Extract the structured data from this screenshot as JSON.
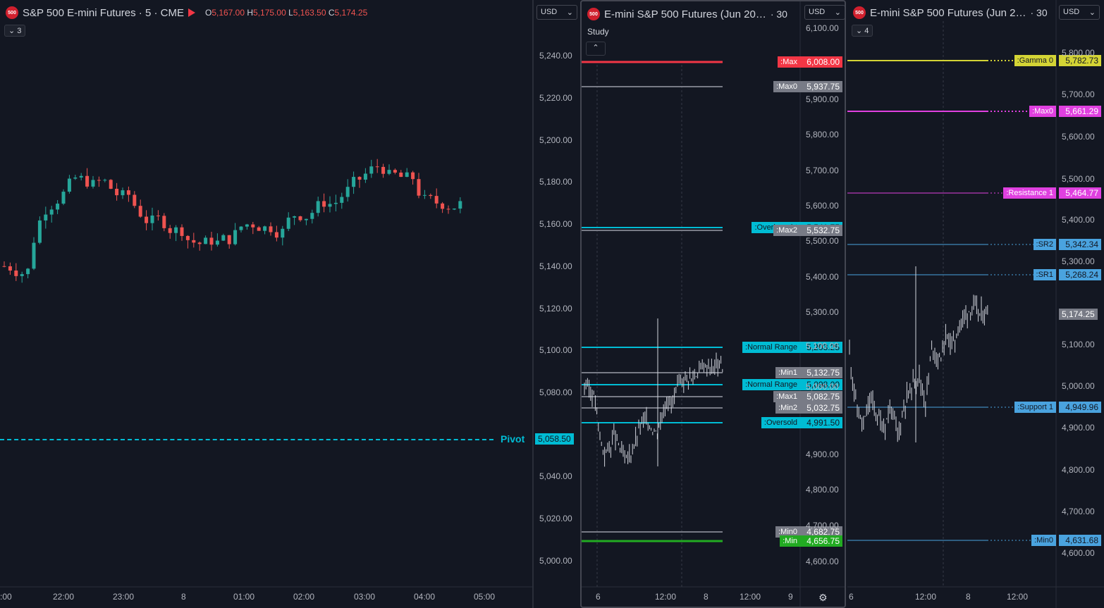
{
  "colors": {
    "bg": "#131722",
    "up": "#26a69a",
    "down": "#ef5350",
    "cyan": "#00bcd4",
    "gray": "#787b86",
    "red": "#f23645",
    "green": "#22ab22",
    "yellow": "#d4d435",
    "magenta": "#e040e0",
    "blue": "#4aa3df"
  },
  "pane1": {
    "symbol_icon": "500",
    "title": "S&P 500 E-mini Futures · 5 · CME",
    "open_label": "O",
    "open": "5,167.00",
    "high_label": "H",
    "high": "5,175.00",
    "low_label": "L",
    "low": "5,163.50",
    "close_label": "C",
    "close": "5,174.25",
    "collapse_count": "3",
    "currency": "USD",
    "pivot_label": "Pivot",
    "pivot_value": "5,058.50",
    "price_axis": [
      "5,240.00",
      "5,220.00",
      "5,200.00",
      "5,180.00",
      "5,160.00",
      "5,140.00",
      "5,120.00",
      "5,100.00",
      "5,080.00",
      "5,060.00",
      "5,040.00",
      "5,020.00",
      "5,000.00"
    ],
    "time_axis": [
      ":00",
      "22:00",
      "23:00",
      "8",
      "01:00",
      "02:00",
      "03:00",
      "04:00",
      "05:00"
    ]
  },
  "pane2": {
    "symbol_icon": "500",
    "title": "E-mini S&P 500 Futures (Jun 20…",
    "interval": "· 30",
    "study_label": "Study",
    "currency": "USD",
    "price_axis": [
      "6,100.00",
      "5,900.00",
      "5,800.00",
      "5,700.00",
      "5,600.00",
      "5,500.00",
      "5,400.00",
      "5,300.00",
      "5,100.00",
      "5,000.00",
      "4,900.00",
      "4,800.00",
      "4,700.00",
      "4,600.00"
    ],
    "time_axis": [
      "6",
      "12:00",
      "8",
      "12:00",
      "9"
    ],
    "levels": [
      {
        "label": ":Max",
        "value": "6,008.00",
        "color": "#f23645"
      },
      {
        "label": ":Max0",
        "value": "5,937.75",
        "color": "#787b86"
      },
      {
        "label": ":Overbought",
        "value": "5,541.75",
        "color": "#00bcd4"
      },
      {
        "label": ":Max2",
        "value": "5,532.75",
        "color": "#787b86"
      },
      {
        "label": ":Normal Range",
        "value": "5,203.25",
        "color": "#00bcd4"
      },
      {
        "label": ":Min1",
        "value": "5,132.75",
        "color": "#787b86"
      },
      {
        "label": ":Normal Range",
        "value": "5,098.00",
        "color": "#00bcd4"
      },
      {
        "label": ":Max1",
        "value": "5,082.75",
        "color": "#787b86"
      },
      {
        "label": ":Min2",
        "value": "5,032.75",
        "color": "#787b86"
      },
      {
        "label": ":Oversold",
        "value": "4,991.50",
        "color": "#00bcd4"
      },
      {
        "label": ":Min0",
        "value": "4,682.75",
        "color": "#787b86"
      },
      {
        "label": ":Min",
        "value": "4,656.75",
        "color": "#22ab22"
      }
    ]
  },
  "pane3": {
    "symbol_icon": "500",
    "title": "E-mini S&P 500 Futures (Jun 2…",
    "interval": "· 30",
    "collapse_count": "4",
    "currency": "USD",
    "price_axis": [
      "5,800.00",
      "5,700.00",
      "5,600.00",
      "5,500.00",
      "5,400.00",
      "5,300.00",
      "5,200.00",
      "5,100.00",
      "5,000.00",
      "4,900.00",
      "4,800.00",
      "4,700.00",
      "4,600.00"
    ],
    "time_axis": [
      "6",
      "12:00",
      "8",
      "12:00"
    ],
    "current_price": "5,174.25",
    "levels": [
      {
        "label": ":Gamma 0",
        "value": "5,782.73",
        "color": "#d4d435"
      },
      {
        "label": ":Max0",
        "value": "5,661.29",
        "color": "#e040e0"
      },
      {
        "label": ":Resistance 1",
        "value": "5,464.77",
        "color": "#e040e0"
      },
      {
        "label": ":SR2",
        "value": "5,342.34",
        "color": "#4aa3df"
      },
      {
        "label": ":SR1",
        "value": "5,268.24",
        "color": "#4aa3df"
      },
      {
        "label": ":Support 1",
        "value": "4,949.96",
        "color": "#4aa3df"
      },
      {
        "label": ":Min0",
        "value": "4,631.68",
        "color": "#4aa3df"
      }
    ]
  }
}
